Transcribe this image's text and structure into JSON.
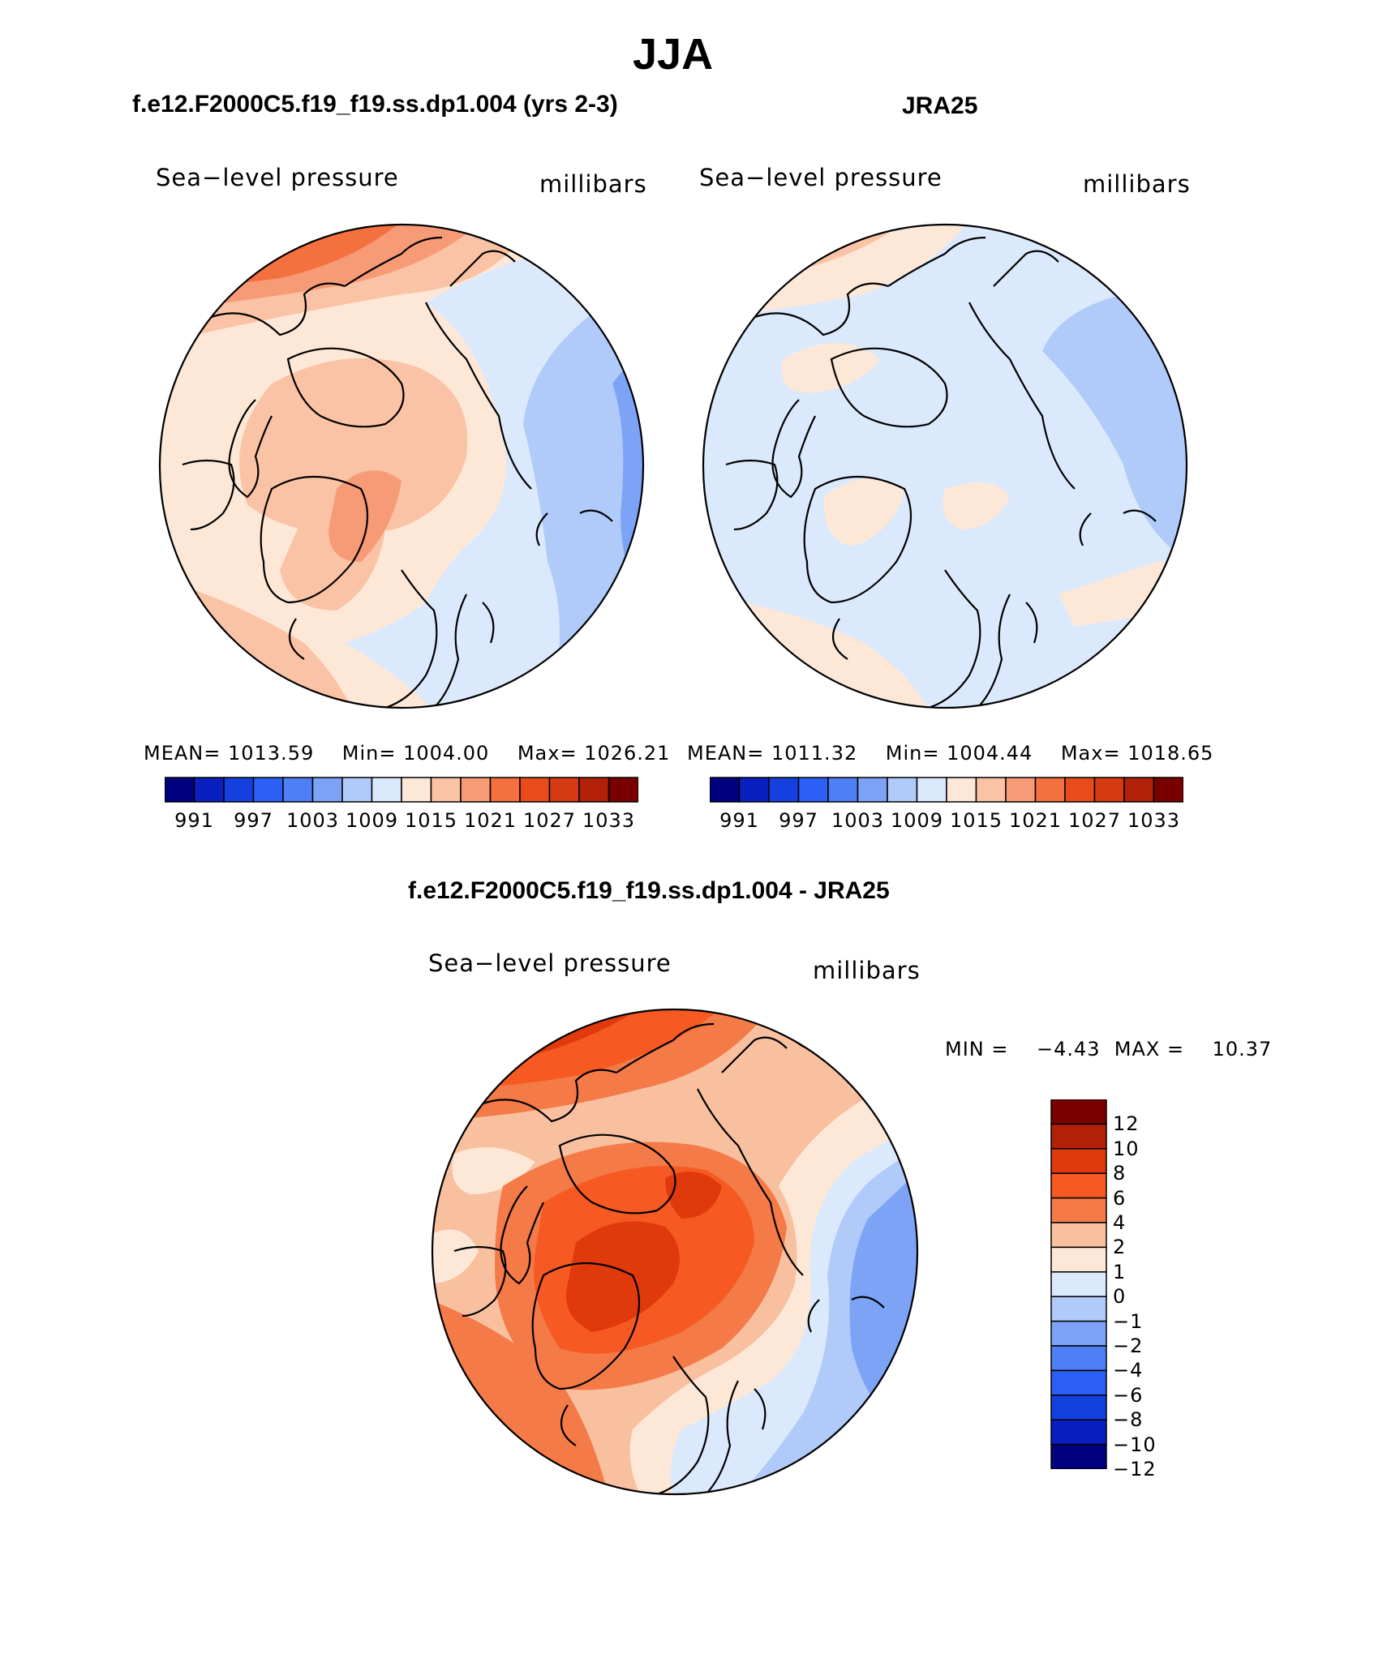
{
  "page_title": "JJA",
  "panels": [
    {
      "id": "model",
      "title": "f.e12.F2000C5.f19_f19.ss.dp1.004 (yrs 2-3)",
      "variable_label": "Sea−level pressure",
      "units_label": "millibars",
      "stats": {
        "mean": "MEAN=  1013.59",
        "min": "Min=  1004.00",
        "max": "Max=  1026.21"
      },
      "colorbar_ticks": [
        "991",
        "997",
        "1003",
        "1009",
        "1015",
        "1021",
        "1027",
        "1033"
      ]
    },
    {
      "id": "obs",
      "title": "JRA25",
      "variable_label": "Sea−level pressure",
      "units_label": "millibars",
      "stats": {
        "mean": "MEAN=  1011.32",
        "min": "Min=  1004.44",
        "max": "Max=  1018.65"
      },
      "colorbar_ticks": [
        "991",
        "997",
        "1003",
        "1009",
        "1015",
        "1021",
        "1027",
        "1033"
      ]
    }
  ],
  "difference": {
    "title": "f.e12.F2000C5.f19_f19.ss.dp1.004 - JRA25",
    "variable_label": "Sea−level pressure",
    "units_label": "millibars",
    "minmax": "MIN =    −4.43  MAX =    10.37",
    "colorbar_ticks": [
      "12",
      "10",
      "8",
      "6",
      "4",
      "2",
      "1",
      "0",
      "−1",
      "−2",
      "−4",
      "−6",
      "−8",
      "−10",
      "−12"
    ]
  },
  "colors": {
    "abs_scale": [
      "#00007f",
      "#0a1fbf",
      "#1540e0",
      "#2b5ff5",
      "#4f7ff5",
      "#7da3f7",
      "#b0cbfa",
      "#dbe9fc",
      "#fde8d8",
      "#fbc3a5",
      "#f79b76",
      "#f4703f",
      "#e94c1a",
      "#d63a12",
      "#b22008",
      "#7a0000"
    ],
    "diff_scale": [
      "#7a0000",
      "#b22008",
      "#e0390c",
      "#f65a22",
      "#f47a48",
      "#f9c0a0",
      "#fde8d8",
      "#dbe9fc",
      "#b0cbfa",
      "#7da3f7",
      "#4f7ff5",
      "#2b5ff5",
      "#1540e0",
      "#0a1fbf",
      "#00007f"
    ]
  },
  "chart_data": [
    {
      "type": "heatmap",
      "title": "f.e12.F2000C5.f19_f19.ss.dp1.004 (yrs 2-3)",
      "variable": "Sea-level pressure",
      "units": "millibars",
      "season": "JJA",
      "projection": "north polar stereographic",
      "mean": 1013.59,
      "min": 1004.0,
      "max": 1026.21,
      "colorbar_levels": [
        991,
        997,
        1003,
        1009,
        1015,
        1021,
        1027,
        1033
      ]
    },
    {
      "type": "heatmap",
      "title": "JRA25",
      "variable": "Sea-level pressure",
      "units": "millibars",
      "season": "JJA",
      "projection": "north polar stereographic",
      "mean": 1011.32,
      "min": 1004.44,
      "max": 1018.65,
      "colorbar_levels": [
        991,
        997,
        1003,
        1009,
        1015,
        1021,
        1027,
        1033
      ]
    },
    {
      "type": "heatmap",
      "title": "f.e12.F2000C5.f19_f19.ss.dp1.004 - JRA25",
      "variable": "Sea-level pressure",
      "units": "millibars",
      "season": "JJA",
      "projection": "north polar stereographic",
      "min": -4.43,
      "max": 10.37,
      "colorbar_levels": [
        -12,
        -10,
        -8,
        -6,
        -4,
        -2,
        -1,
        0,
        1,
        2,
        4,
        6,
        8,
        10,
        12
      ]
    }
  ]
}
